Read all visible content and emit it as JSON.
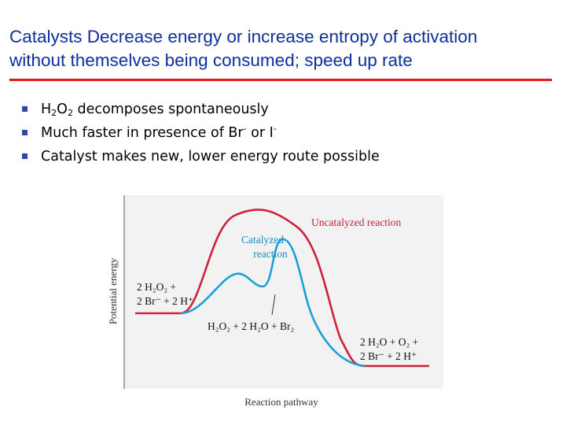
{
  "slide": {
    "title_line1": "Catalysts Decrease energy or increase entropy of activation",
    "title_line2": "without themselves being consumed; speed up rate",
    "bullets": [
      {
        "parts": [
          [
            "H",
            ""
          ],
          [
            "2",
            "sub"
          ],
          [
            "O",
            ""
          ],
          [
            "2",
            "sub"
          ],
          [
            " decomposes spontaneously",
            ""
          ]
        ]
      },
      {
        "parts": [
          [
            "Much faster in presence of Br",
            ""
          ],
          [
            "-",
            "sup"
          ],
          [
            " or I",
            ""
          ],
          [
            "-",
            "sup"
          ]
        ]
      },
      {
        "parts": [
          [
            "Catalyst makes new, lower energy route possible",
            ""
          ]
        ]
      }
    ]
  },
  "diagram": {
    "y_axis_label": "Potential energy",
    "x_axis_label": "Reaction pathway",
    "uncatalyzed_label": "Uncatalyzed reaction",
    "catalyzed_label_line1": "Catalyzed",
    "catalyzed_label_line2": "reaction",
    "reactants_line1": "2 H₂O₂ +",
    "reactants_line2": "2 Br⁻ + 2 H⁺",
    "intermediate": "H₂O₂ + 2 H₂O + Br₂",
    "products_line1": "2 H₂O + O₂ +",
    "products_line2": "2 Br⁻ + 2 H⁺",
    "colors": {
      "uncatalyzed": "#d0203a",
      "catalyzed": "#1aa0d8",
      "uncatalyzed_text": "#c8203a",
      "catalyzed_text": "#1a8cc0",
      "panel": "#f2f2f2",
      "title": "#0f2f9f",
      "rule": "#e8141e"
    }
  }
}
